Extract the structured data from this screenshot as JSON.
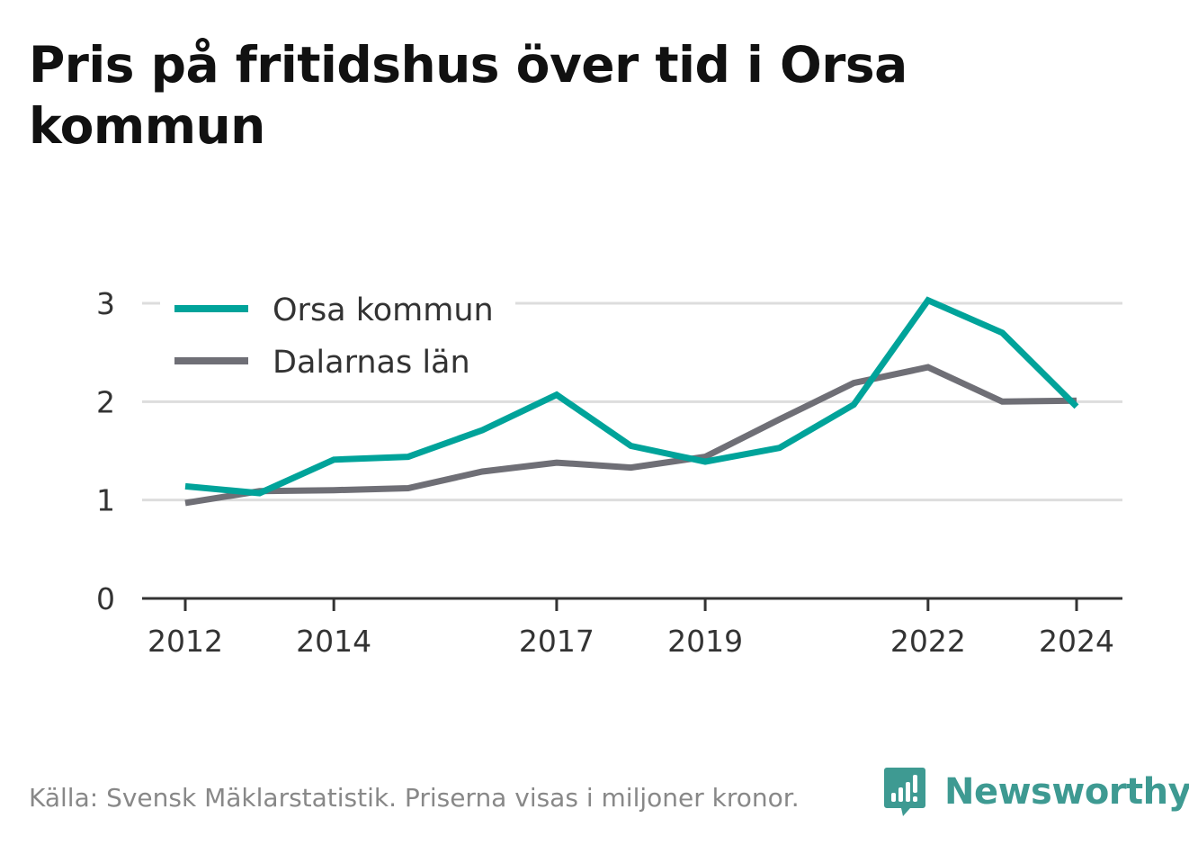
{
  "title": "Pris på fritidshus över tid i Orsa kommun",
  "source": "Källa: Svensk Mäklarstatistik. Priserna visas i miljoner kronor.",
  "brand": {
    "name": "Newsworthy",
    "icon": "newsworthy-logo-icon",
    "color": "#3e9a92"
  },
  "chart_data": {
    "type": "line",
    "x": [
      2012,
      2013,
      2014,
      2015,
      2016,
      2017,
      2018,
      2019,
      2020,
      2021,
      2022,
      2023,
      2024
    ],
    "x_tick_labels": [
      "2012",
      "2014",
      "2017",
      "2019",
      "2022",
      "2024"
    ],
    "y_tick_labels": [
      "0",
      "1",
      "2",
      "3"
    ],
    "ylim": [
      0,
      3
    ],
    "grid": true,
    "legend_position": "top-left",
    "series": [
      {
        "name": "Orsa kommun",
        "color": "#00a39a",
        "values": [
          1.14,
          1.07,
          1.41,
          1.44,
          1.71,
          2.07,
          1.55,
          1.39,
          1.53,
          1.97,
          3.03,
          2.7,
          1.95
        ]
      },
      {
        "name": "Dalarnas län",
        "color": "#6f6f76",
        "values": [
          0.97,
          1.09,
          1.1,
          1.12,
          1.29,
          1.38,
          1.33,
          1.44,
          1.82,
          2.19,
          2.35,
          2.0,
          2.01
        ]
      }
    ]
  }
}
